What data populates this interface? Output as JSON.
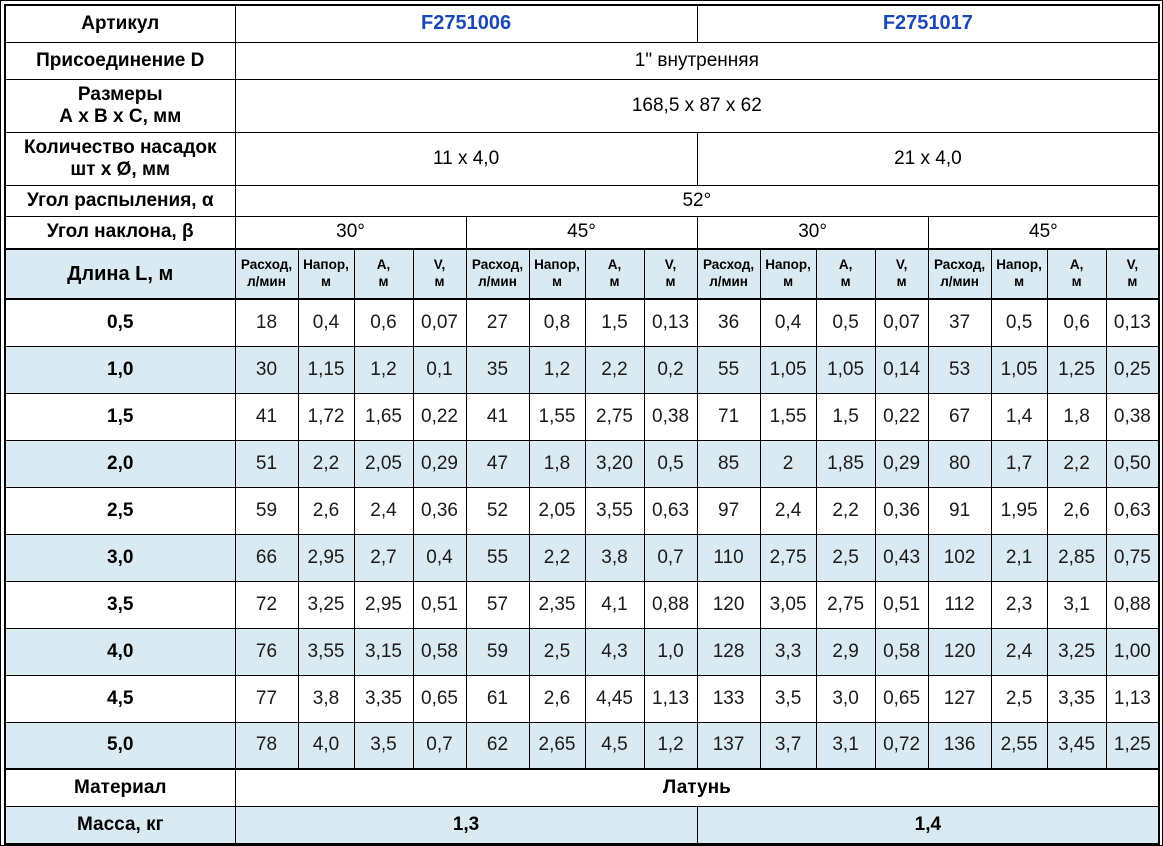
{
  "colors": {
    "article_blue": "#1b49b8",
    "row_highlight": "#d9eaf2",
    "border": "#000000"
  },
  "table": {
    "article_row": {
      "label": "Артикул",
      "values": [
        "F2751006",
        "F2751017"
      ]
    },
    "connection_row": {
      "label": "Присоединение D",
      "value": "1\" внутренняя"
    },
    "dimensions_row": {
      "label": "Размеры\nА х В х С, мм",
      "value": "168,5 х 87 х 62"
    },
    "nozzles_row": {
      "label": "Количество насадок\nшт х Ø, мм",
      "values": [
        "11 х 4,0",
        "21 х 4,0"
      ]
    },
    "spray_angle_row": {
      "label": "Угол распыления, α",
      "value": "52°"
    },
    "tilt_angle_row": {
      "label": "Угол наклона, β",
      "values": [
        "30°",
        "45°",
        "30°",
        "45°"
      ]
    },
    "header_row": {
      "label": "Длина L, м",
      "subheaders": [
        "Расход,\nл/мин",
        "Напор,\nм",
        "А,\nм",
        "V,\nм"
      ]
    },
    "data_rows": [
      {
        "length_m": "0,5",
        "values": [
          "18",
          "0,4",
          "0,6",
          "0,07",
          "27",
          "0,8",
          "1,5",
          "0,13",
          "36",
          "0,4",
          "0,5",
          "0,07",
          "37",
          "0,5",
          "0,6",
          "0,13"
        ]
      },
      {
        "length_m": "1,0",
        "values": [
          "30",
          "1,15",
          "1,2",
          "0,1",
          "35",
          "1,2",
          "2,2",
          "0,2",
          "55",
          "1,05",
          "1,05",
          "0,14",
          "53",
          "1,05",
          "1,25",
          "0,25"
        ]
      },
      {
        "length_m": "1,5",
        "values": [
          "41",
          "1,72",
          "1,65",
          "0,22",
          "41",
          "1,55",
          "2,75",
          "0,38",
          "71",
          "1,55",
          "1,5",
          "0,22",
          "67",
          "1,4",
          "1,8",
          "0,38"
        ]
      },
      {
        "length_m": "2,0",
        "values": [
          "51",
          "2,2",
          "2,05",
          "0,29",
          "47",
          "1,8",
          "3,20",
          "0,5",
          "85",
          "2",
          "1,85",
          "0,29",
          "80",
          "1,7",
          "2,2",
          "0,50"
        ]
      },
      {
        "length_m": "2,5",
        "values": [
          "59",
          "2,6",
          "2,4",
          "0,36",
          "52",
          "2,05",
          "3,55",
          "0,63",
          "97",
          "2,4",
          "2,2",
          "0,36",
          "91",
          "1,95",
          "2,6",
          "0,63"
        ]
      },
      {
        "length_m": "3,0",
        "values": [
          "66",
          "2,95",
          "2,7",
          "0,4",
          "55",
          "2,2",
          "3,8",
          "0,7",
          "110",
          "2,75",
          "2,5",
          "0,43",
          "102",
          "2,1",
          "2,85",
          "0,75"
        ]
      },
      {
        "length_m": "3,5",
        "values": [
          "72",
          "3,25",
          "2,95",
          "0,51",
          "57",
          "2,35",
          "4,1",
          "0,88",
          "120",
          "3,05",
          "2,75",
          "0,51",
          "112",
          "2,3",
          "3,1",
          "0,88"
        ]
      },
      {
        "length_m": "4,0",
        "values": [
          "76",
          "3,55",
          "3,15",
          "0,58",
          "59",
          "2,5",
          "4,3",
          "1,0",
          "128",
          "3,3",
          "2,9",
          "0,58",
          "120",
          "2,4",
          "3,25",
          "1,00"
        ]
      },
      {
        "length_m": "4,5",
        "values": [
          "77",
          "3,8",
          "3,35",
          "0,65",
          "61",
          "2,6",
          "4,45",
          "1,13",
          "133",
          "3,5",
          "3,0",
          "0,65",
          "127",
          "2,5",
          "3,35",
          "1,13"
        ]
      },
      {
        "length_m": "5,0",
        "values": [
          "78",
          "4,0",
          "3,5",
          "0,7",
          "62",
          "2,65",
          "4,5",
          "1,2",
          "137",
          "3,7",
          "3,1",
          "0,72",
          "136",
          "2,55",
          "3,45",
          "1,25"
        ]
      }
    ],
    "material_row": {
      "label": "Материал",
      "value": "Латунь"
    },
    "mass_row": {
      "label": "Масса, кг",
      "values": [
        "1,3",
        "1,4"
      ]
    }
  }
}
